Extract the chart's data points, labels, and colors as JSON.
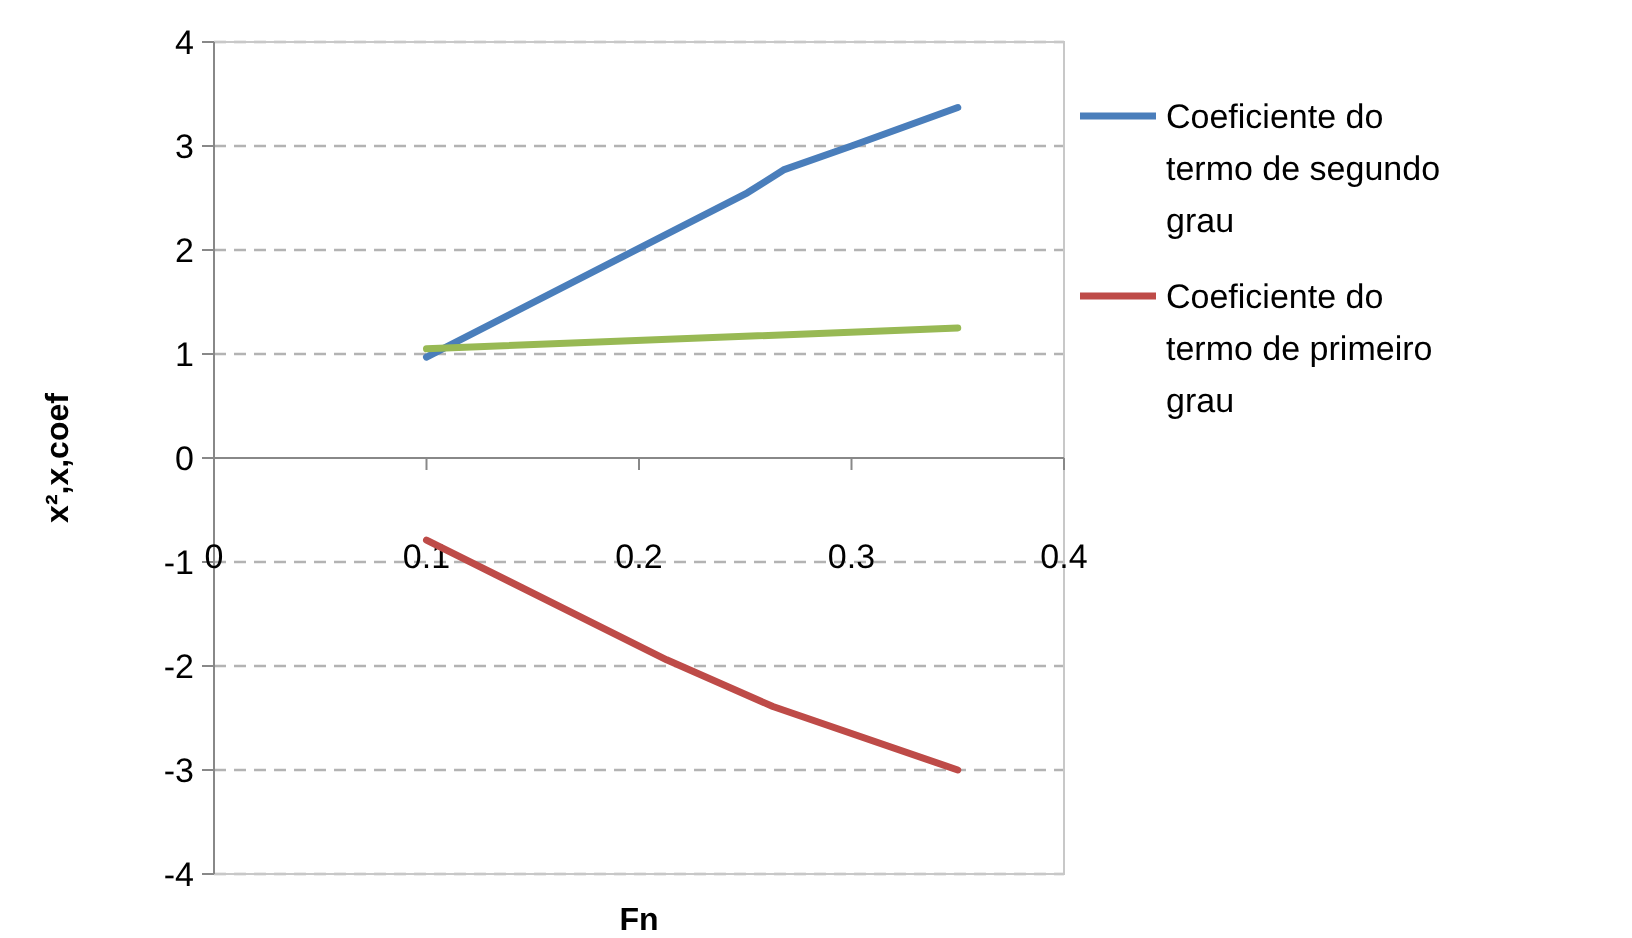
{
  "chart_data": {
    "type": "line",
    "xlabel": "Fn",
    "ylabel": "x²,x,coef",
    "xlim": [
      0,
      0.4
    ],
    "xticks": [
      0,
      0.1,
      0.2,
      0.3,
      0.4
    ],
    "ylim": [
      -4,
      4
    ],
    "yticks": [
      -4,
      -3,
      -2,
      -1,
      0,
      1,
      2,
      3,
      4
    ],
    "grid": "y",
    "legend": "right",
    "line_style": "solid",
    "marker": "none",
    "series": [
      {
        "name": "Coeficiente do termo de segundo grau",
        "color": "#4a7ebb",
        "x": [
          0.1,
          0.251,
          0.268,
          0.3,
          0.35
        ],
        "values": [
          0.97,
          2.55,
          2.77,
          3.0,
          3.37
        ]
      },
      {
        "name": "Coeficiente do termo de primeiro grau",
        "color": "#be4b48",
        "x": [
          0.1,
          0.213,
          0.263,
          0.35
        ],
        "values": [
          -0.79,
          -1.94,
          -2.39,
          -3.0
        ]
      },
      {
        "color": "#98b954",
        "x": [
          0.1,
          0.35
        ],
        "values": [
          1.05,
          1.25
        ]
      }
    ]
  }
}
